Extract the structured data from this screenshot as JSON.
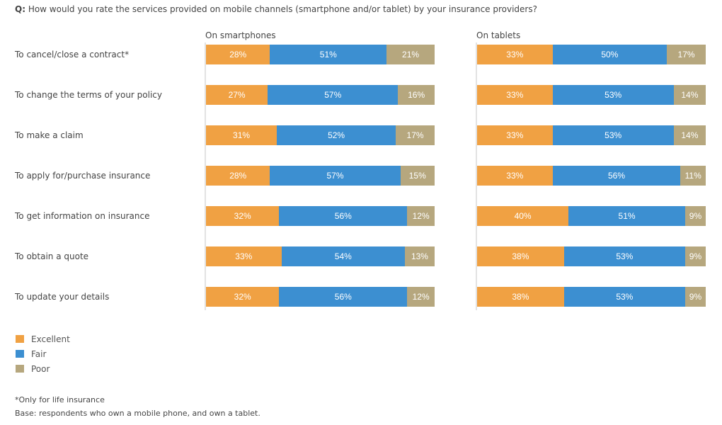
{
  "question": {
    "prefix": "Q:",
    "text": " How would you rate the services provided on mobile channels (smartphone and/or tablet) by your insurance providers?"
  },
  "colors": {
    "Excellent": "#f0a143",
    "Fair": "#3c8fd1",
    "Poor": "#b6a77e"
  },
  "chart_data": [
    {
      "type": "bar",
      "orientation": "horizontal",
      "stacked": true,
      "title": "On smartphones",
      "categories": [
        "To cancel/close a contract*",
        "To change the terms of your policy",
        "To make a claim",
        "To apply for/purchase insurance",
        "To get information on insurance",
        "To obtain a quote",
        "To update your details"
      ],
      "series": [
        {
          "name": "Excellent",
          "values": [
            28,
            27,
            31,
            28,
            32,
            33,
            32
          ]
        },
        {
          "name": "Fair",
          "values": [
            51,
            57,
            52,
            57,
            56,
            54,
            56
          ]
        },
        {
          "name": "Poor",
          "values": [
            21,
            16,
            17,
            15,
            12,
            13,
            12
          ]
        }
      ],
      "unit": "%",
      "xlim": [
        0,
        100
      ]
    },
    {
      "type": "bar",
      "orientation": "horizontal",
      "stacked": true,
      "title": "On tablets",
      "categories": [
        "To cancel/close a contract*",
        "To change the terms of your policy",
        "To make a claim",
        "To apply for/purchase insurance",
        "To get information on insurance",
        "To obtain a quote",
        "To update your details"
      ],
      "series": [
        {
          "name": "Excellent",
          "values": [
            33,
            33,
            33,
            33,
            40,
            38,
            38
          ]
        },
        {
          "name": "Fair",
          "values": [
            50,
            53,
            53,
            56,
            51,
            53,
            53
          ]
        },
        {
          "name": "Poor",
          "values": [
            17,
            14,
            14,
            11,
            9,
            9,
            9
          ]
        }
      ],
      "unit": "%",
      "xlim": [
        0,
        100
      ]
    }
  ],
  "legend": {
    "placement": "bottom-left",
    "items": [
      "Excellent",
      "Fair",
      "Poor"
    ]
  },
  "footnotes": [
    "*Only for life insurance",
    "Base: respondents who own a mobile phone, and own a tablet."
  ]
}
